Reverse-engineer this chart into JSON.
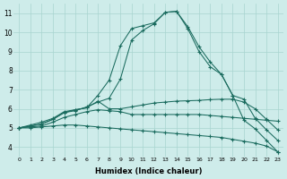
{
  "xlabel": "Humidex (Indice chaleur)",
  "ylabel": "",
  "xlim": [
    -0.5,
    23.5
  ],
  "ylim": [
    3.5,
    11.5
  ],
  "xticks": [
    0,
    1,
    2,
    3,
    4,
    5,
    6,
    7,
    8,
    9,
    10,
    11,
    12,
    13,
    14,
    15,
    16,
    17,
    18,
    19,
    20,
    21,
    22,
    23
  ],
  "yticks": [
    4,
    5,
    6,
    7,
    8,
    9,
    10,
    11
  ],
  "background_color": "#ceecea",
  "line_color": "#1a6b5e",
  "grid_color": "#a8d5d0",
  "lines": [
    {
      "x": [
        0,
        1,
        2,
        3,
        4,
        5,
        6,
        7,
        8,
        9,
        10,
        11,
        12,
        13,
        14,
        15,
        16,
        17,
        18,
        19,
        20,
        21,
        22,
        23
      ],
      "y": [
        5.0,
        5.15,
        5.3,
        5.5,
        5.85,
        5.95,
        6.05,
        6.7,
        7.5,
        9.3,
        10.2,
        10.35,
        10.5,
        11.05,
        11.1,
        10.2,
        9.0,
        8.2,
        7.8,
        6.7,
        5.4,
        4.95,
        4.35,
        3.75
      ]
    },
    {
      "x": [
        0,
        1,
        2,
        3,
        4,
        5,
        6,
        7,
        8,
        9,
        10,
        11,
        12,
        13,
        14,
        15,
        16,
        17,
        18,
        19,
        20,
        21,
        22,
        23
      ],
      "y": [
        5.0,
        5.1,
        5.2,
        5.45,
        5.8,
        5.9,
        6.1,
        6.35,
        6.55,
        7.55,
        9.6,
        10.1,
        10.45,
        11.05,
        11.1,
        10.3,
        9.25,
        8.45,
        7.8,
        6.7,
        6.5,
        5.5,
        4.9,
        4.35
      ]
    },
    {
      "x": [
        0,
        1,
        2,
        3,
        4,
        5,
        6,
        7,
        8,
        9,
        10,
        11,
        12,
        13,
        14,
        15,
        16,
        17,
        18,
        19,
        20,
        21,
        22,
        23
      ],
      "y": [
        5.0,
        5.1,
        5.2,
        5.45,
        5.8,
        5.95,
        6.05,
        6.4,
        6.0,
        6.0,
        6.1,
        6.2,
        6.3,
        6.35,
        6.4,
        6.42,
        6.44,
        6.48,
        6.5,
        6.5,
        6.35,
        6.0,
        5.45,
        4.9
      ]
    },
    {
      "x": [
        0,
        1,
        2,
        3,
        4,
        5,
        6,
        7,
        8,
        9,
        10,
        11,
        12,
        13,
        14,
        15,
        16,
        17,
        18,
        19,
        20,
        21,
        22,
        23
      ],
      "y": [
        5.0,
        5.05,
        5.1,
        5.3,
        5.55,
        5.7,
        5.85,
        5.95,
        5.9,
        5.85,
        5.7,
        5.7,
        5.7,
        5.7,
        5.7,
        5.7,
        5.7,
        5.65,
        5.6,
        5.55,
        5.5,
        5.45,
        5.4,
        5.35
      ]
    },
    {
      "x": [
        0,
        1,
        2,
        3,
        4,
        5,
        6,
        7,
        8,
        9,
        10,
        11,
        12,
        13,
        14,
        15,
        16,
        17,
        18,
        19,
        20,
        21,
        22,
        23
      ],
      "y": [
        5.0,
        5.0,
        5.05,
        5.1,
        5.15,
        5.15,
        5.1,
        5.05,
        5.0,
        4.95,
        4.9,
        4.85,
        4.8,
        4.75,
        4.7,
        4.65,
        4.6,
        4.55,
        4.5,
        4.4,
        4.3,
        4.2,
        4.05,
        3.75
      ]
    }
  ]
}
